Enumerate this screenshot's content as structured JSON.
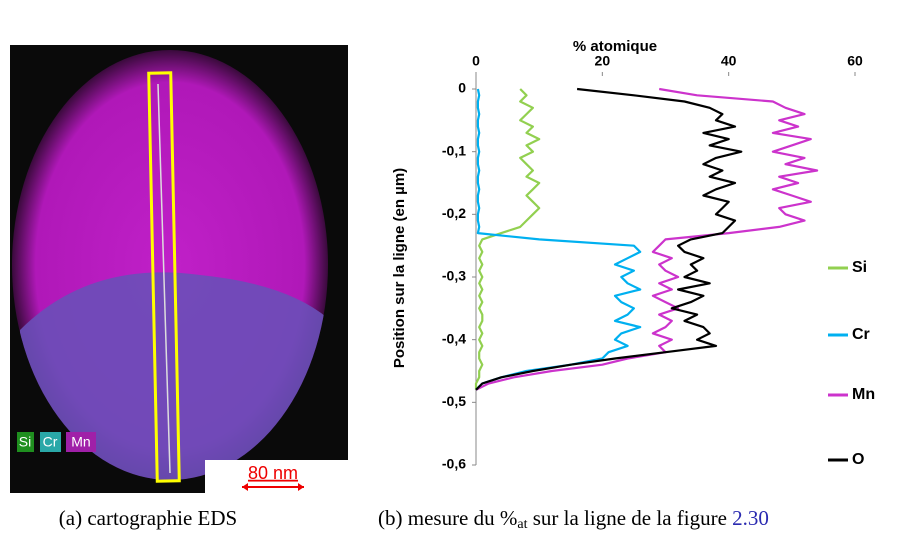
{
  "chart_data": {
    "type": "line",
    "orientation": "vertical-profile",
    "title": "% atomique",
    "y_label": "Position sur la ligne (en µm)",
    "xlim": [
      0,
      60
    ],
    "xticks": [
      0,
      20,
      40,
      60
    ],
    "ylim": [
      0,
      -0.6
    ],
    "yticks": [
      0,
      {
        "value": -0.1,
        "label": "-0,1"
      },
      {
        "value": -0.2,
        "label": "-0,2"
      },
      {
        "value": -0.3,
        "label": "-0,3"
      },
      {
        "value": -0.4,
        "label": "-0,4"
      },
      {
        "value": -0.5,
        "label": "-0,5"
      },
      {
        "value": -0.6,
        "label": "-0,6"
      }
    ],
    "x": [
      0,
      -0.01,
      -0.02,
      -0.03,
      -0.04,
      -0.05,
      -0.06,
      -0.07,
      -0.08,
      -0.09,
      -0.1,
      -0.11,
      -0.12,
      -0.13,
      -0.14,
      -0.15,
      -0.16,
      -0.17,
      -0.18,
      -0.19,
      -0.2,
      -0.21,
      -0.22,
      -0.23,
      -0.24,
      -0.25,
      -0.26,
      -0.27,
      -0.28,
      -0.29,
      -0.3,
      -0.31,
      -0.32,
      -0.33,
      -0.34,
      -0.35,
      -0.36,
      -0.37,
      -0.38,
      -0.39,
      -0.4,
      -0.41,
      -0.42,
      -0.43,
      -0.44,
      -0.45,
      -0.46,
      -0.47,
      -0.48
    ],
    "series": [
      {
        "name": "Si",
        "color": "#92d050",
        "values": [
          7,
          8,
          7,
          9,
          8,
          7,
          9,
          8,
          10,
          8,
          9,
          7,
          8,
          9,
          8,
          10,
          9,
          8,
          9,
          10,
          9,
          8,
          7,
          4,
          1,
          0.5,
          1,
          0.5,
          1,
          0.5,
          1,
          0.5,
          1,
          0.5,
          1,
          0.5,
          1,
          1,
          0.5,
          1,
          0.5,
          1,
          0.5,
          0.5,
          1,
          0.5,
          0.5,
          0,
          0
        ]
      },
      {
        "name": "Cr",
        "color": "#00b0f0",
        "values": [
          0.3,
          0.5,
          0.3,
          0.3,
          0.5,
          0.3,
          0.3,
          0.5,
          0.3,
          0.3,
          0.5,
          0.3,
          0.3,
          0.5,
          0.3,
          0.3,
          0.5,
          0.3,
          0.3,
          0.5,
          0.3,
          0.3,
          0.5,
          0.3,
          10,
          25,
          26,
          24,
          22,
          25,
          23,
          24,
          26,
          22,
          23,
          25,
          24,
          22,
          26,
          23,
          22,
          24,
          21,
          20,
          15,
          8,
          4,
          1,
          0
        ]
      },
      {
        "name": "Mn",
        "color": "#cc33cc",
        "values": [
          29,
          35,
          47,
          49,
          52,
          48,
          51,
          47,
          53,
          50,
          47,
          52,
          49,
          54,
          48,
          51,
          47,
          50,
          53,
          48,
          49,
          52,
          48,
          40,
          30,
          29,
          28,
          31,
          29,
          30,
          32,
          29,
          31,
          28,
          30,
          32,
          29,
          31,
          30,
          28,
          31,
          29,
          30,
          24,
          20,
          12,
          6,
          2,
          0
        ]
      },
      {
        "name": "O",
        "color": "#000000",
        "values": [
          16,
          25,
          33,
          37,
          39,
          38,
          41,
          36,
          40,
          37,
          42,
          38,
          36,
          39,
          37,
          41,
          38,
          36,
          40,
          39,
          38,
          41,
          40,
          39,
          34,
          32,
          33,
          36,
          34,
          35,
          33,
          37,
          32,
          36,
          34,
          31,
          35,
          33,
          36,
          37,
          35,
          38,
          30,
          22,
          15,
          9,
          4,
          1,
          0
        ]
      }
    ]
  },
  "image": {
    "legend": [
      "Si",
      "Cr",
      "Mn"
    ],
    "scale_bar": "80 nm"
  },
  "captions": {
    "a": "(a) cartographie EDS",
    "b_before": "(b) mesure du %",
    "b_sub": "at",
    "b_after": " sur la ligne de la figure ",
    "b_ref": "2.30"
  }
}
